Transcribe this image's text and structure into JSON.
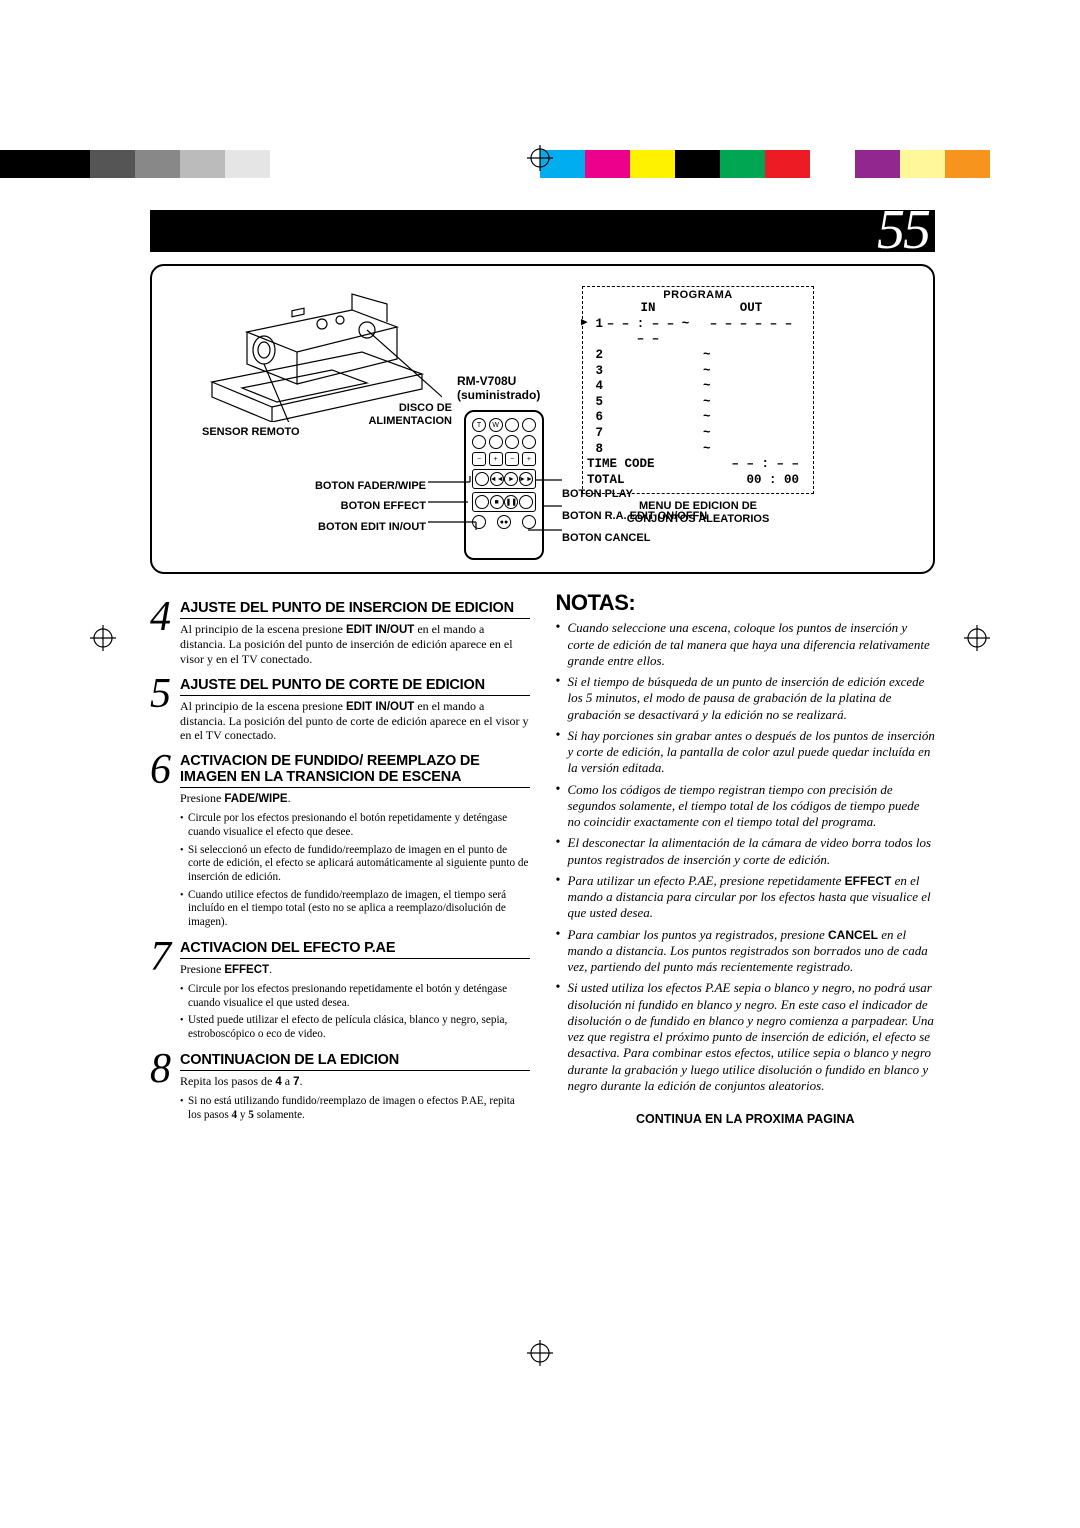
{
  "colorbar_colors": [
    "#000000",
    "#000000",
    "#555555",
    "#888888",
    "#bbbbbb",
    "#e5e5e5",
    "#ffffff",
    "#ffffff",
    "#ffffff",
    "#ffffff",
    "#ffffff",
    "#ffffff",
    "#00aeef",
    "#ec008c",
    "#fff200",
    "#000000",
    "#00a651",
    "#ed1c24",
    "#ffffff",
    "#92278f",
    "#fff799",
    "#f7941d",
    "#ffffff",
    "#ffffff"
  ],
  "page_number": "55",
  "diagram": {
    "remote_model": "RM-V708U",
    "remote_supplied": "(suministrado)",
    "disco_label": "DISCO DE\nALIMENTACION",
    "sensor_label": "SENSOR REMOTO",
    "left_labels": {
      "fader": "BOTON FADER/WIPE",
      "effect": "BOTON EFFECT",
      "edit": "BOTON EDIT IN/OUT"
    },
    "right_labels": {
      "play": "BOTON PLAY",
      "ra": "BOTON R.A. EDIT ON/OFFN",
      "cancel": "BOTON CANCEL"
    },
    "osd": {
      "title": "PROGRAMA",
      "col_in": "IN",
      "col_out": "OUT",
      "first_in": "– – : – – ~ – –",
      "first_out": "– –    – – – –",
      "rows": [
        "1",
        "2",
        "3",
        "4",
        "5",
        "6",
        "7",
        "8"
      ],
      "tilde": "~",
      "timecode_label": "TIME CODE",
      "timecode_val": "– – : – –",
      "total_label": "TOTAL",
      "total_val": "00 : 00",
      "footer1": "MENU DE EDICION DE",
      "footer2": "CONJUNTOS ALEATORIOS"
    }
  },
  "steps": {
    "s4": {
      "num": "4",
      "title": "AJUSTE DEL PUNTO DE INSERCION DE EDICION",
      "text_a": "Al principio de la escena presione ",
      "text_b": "EDIT IN/OUT",
      "text_c": " en el mando a distancia. La posición del punto de inserción de edición aparece en el visor y en el TV conectado."
    },
    "s5": {
      "num": "5",
      "title": "AJUSTE DEL PUNTO DE CORTE DE EDICION",
      "text_a": "Al principio de la escena presione ",
      "text_b": "EDIT IN/OUT",
      "text_c": " en el mando a distancia. La posición del punto de corte de edición aparece en el visor y en el TV conectado."
    },
    "s6": {
      "num": "6",
      "title": "ACTIVACION DE FUNDIDO/ REEMPLAZO DE IMAGEN EN LA TRANSICION DE ESCENA",
      "text_a": "Presione ",
      "text_b": "FADE/WIPE",
      "text_c": ".",
      "bullets": [
        "Circule por los efectos presionando el botón repetidamente y deténgase cuando visualice el efecto que desee.",
        "Si seleccionó un efecto de fundido/reemplazo de imagen en el punto de corte de edición, el efecto se aplicará automáticamente al siguiente punto de inserción de edición.",
        "Cuando utilice efectos de fundido/reemplazo de imagen, el tiempo será incluído en el tiempo total (esto no se aplica a reemplazo/disolución de imagen)."
      ]
    },
    "s7": {
      "num": "7",
      "title": "ACTIVACION DEL EFECTO P.AE",
      "text_a": "Presione ",
      "text_b": "EFFECT",
      "text_c": ".",
      "bullets": [
        "Circule por los efectos presionando repetidamente el botón y deténgase cuando visualice el que usted desea.",
        "Usted puede utilizar el efecto de película clásica, blanco y negro, sepia, estroboscópico o eco de video."
      ]
    },
    "s8": {
      "num": "8",
      "title": "CONTINUACION DE LA EDICION",
      "text_a": "Repita los pasos de ",
      "text_b": "4",
      "text_m": " a ",
      "text_c": "7",
      "text_d": ".",
      "bullets_a": "Si no está utilizando fundido/reemplazo de imagen o efectos P.AE, repita los pasos ",
      "bullets_b": "4",
      "bullets_c": " y ",
      "bullets_d": "5",
      "bullets_e": " solamente."
    }
  },
  "notas": {
    "title": "NOTAS:",
    "items": [
      {
        "t": "Cuando seleccione una escena, coloque los puntos de inserción y corte de edición de tal manera que haya una diferencia relativamente grande entre ellos."
      },
      {
        "t": "Si el tiempo de búsqueda de un punto de inserción de edición excede los 5 minutos, el modo de pausa de grabación de la platina de grabación se desactivará y la edición no se realizará."
      },
      {
        "t": "Si hay porciones sin grabar antes o después de los puntos de inserción y corte de edición, la pantalla de color azul puede quedar incluída en la versión editada."
      },
      {
        "t": "Como los códigos de tiempo registran tiempo con precisión de segundos solamente, el tiempo total de los códigos de tiempo puede no coincidir exactamente con el tiempo total del programa."
      },
      {
        "t": "El desconectar la alimentación de la cámara de video borra todos los puntos registrados de inserción y corte de edición."
      },
      {
        "pre": "Para utilizar un efecto P.AE, presione repetidamente ",
        "b": "EFFECT",
        "post": " en el mando a distancia para circular por los efectos hasta que visualice el que usted desea."
      },
      {
        "pre": "Para cambiar los puntos ya registrados, presione ",
        "b": "CANCEL",
        "post": " en el mando a distancia. Los puntos registrados son borrados uno de cada vez, partiendo del punto más recientemente registrado."
      },
      {
        "t": "Si usted utiliza los efectos P.AE sepia o blanco y negro, no podrá usar disolución ni fundido en blanco y negro. En este caso el indicador de disolución o de fundido en blanco y negro comienza a parpadear. Una vez que registra el próximo punto de inserción de edición, el efecto se desactiva. Para combinar estos efectos, utilice sepia o blanco y negro durante la grabación y luego utilice disolución o fundido en blanco y negro durante la edición de conjuntos aleatorios."
      }
    ],
    "continue": "CONTINUA EN LA PROXIMA PAGINA"
  }
}
